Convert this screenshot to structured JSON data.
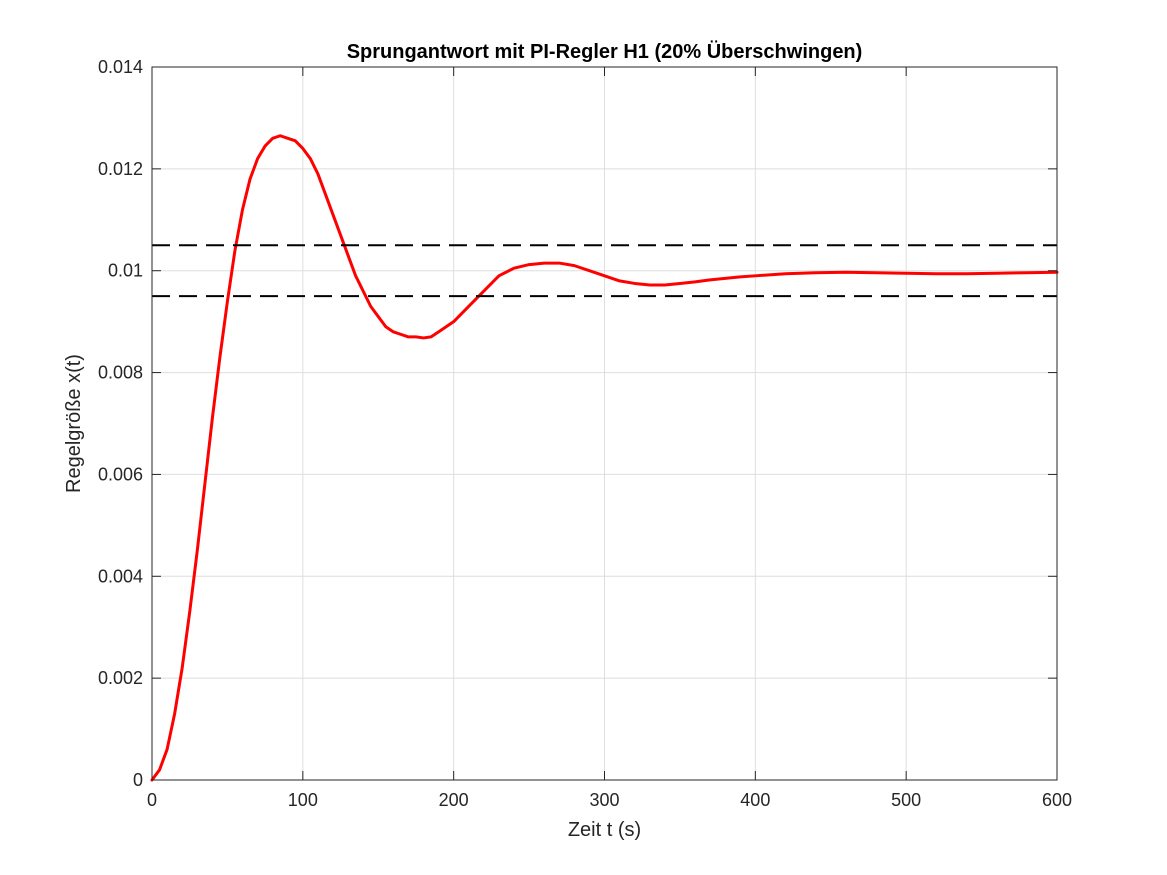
{
  "chart_data": {
    "type": "line",
    "title": "Sprungantwort mit PI-Regler H1 (20% Überschwingen)",
    "xlabel": "Zeit t (s)",
    "ylabel": "Regelgröße x(t)",
    "xlim": [
      0,
      600
    ],
    "ylim": [
      0,
      0.014
    ],
    "grid": true,
    "xticks": [
      0,
      100,
      200,
      300,
      400,
      500,
      600
    ],
    "xtick_labels": [
      "0",
      "100",
      "200",
      "300",
      "400",
      "500",
      "600"
    ],
    "yticks": [
      0,
      0.002,
      0.004,
      0.006,
      0.008,
      0.01,
      0.012,
      0.014
    ],
    "ytick_labels": [
      "0",
      "0.002",
      "0.004",
      "0.006",
      "0.008",
      "0.01",
      "0.012",
      "0.014"
    ],
    "series": [
      {
        "color": "#ff0000",
        "style": "solid",
        "x": [
          0,
          5,
          10,
          15,
          20,
          25,
          30,
          35,
          40,
          45,
          50,
          55,
          60,
          65,
          70,
          75,
          80,
          85,
          90,
          95,
          100,
          105,
          110,
          115,
          120,
          125,
          130,
          135,
          140,
          145,
          150,
          155,
          160,
          165,
          170,
          175,
          180,
          185,
          190,
          200,
          210,
          220,
          230,
          240,
          250,
          260,
          270,
          280,
          290,
          300,
          310,
          320,
          330,
          340,
          350,
          360,
          370,
          380,
          390,
          400,
          420,
          440,
          460,
          480,
          500,
          520,
          540,
          560,
          580,
          600
        ],
        "y": [
          0,
          0.0002,
          0.0006,
          0.0013,
          0.0022,
          0.0033,
          0.0045,
          0.0058,
          0.0071,
          0.0083,
          0.0094,
          0.0104,
          0.0112,
          0.0118,
          0.0122,
          0.01245,
          0.0126,
          0.01265,
          0.0126,
          0.01255,
          0.0124,
          0.0122,
          0.0119,
          0.0115,
          0.0111,
          0.0107,
          0.0103,
          0.0099,
          0.0096,
          0.0093,
          0.0091,
          0.0089,
          0.0088,
          0.00875,
          0.0087,
          0.0087,
          0.00868,
          0.0087,
          0.0088,
          0.009,
          0.0093,
          0.0096,
          0.0099,
          0.01005,
          0.01012,
          0.01015,
          0.01015,
          0.0101,
          0.01,
          0.0099,
          0.0098,
          0.00975,
          0.00972,
          0.00972,
          0.00975,
          0.00978,
          0.00982,
          0.00985,
          0.00988,
          0.0099,
          0.00994,
          0.00996,
          0.00997,
          0.00996,
          0.00995,
          0.00994,
          0.00994,
          0.00995,
          0.00996,
          0.00997
        ]
      },
      {
        "color": "#000000",
        "style": "dashed",
        "x": [
          0,
          600
        ],
        "y": [
          0.0105,
          0.0105
        ]
      },
      {
        "color": "#000000",
        "style": "dashed",
        "x": [
          0,
          600
        ],
        "y": [
          0.0095,
          0.0095
        ]
      }
    ]
  }
}
